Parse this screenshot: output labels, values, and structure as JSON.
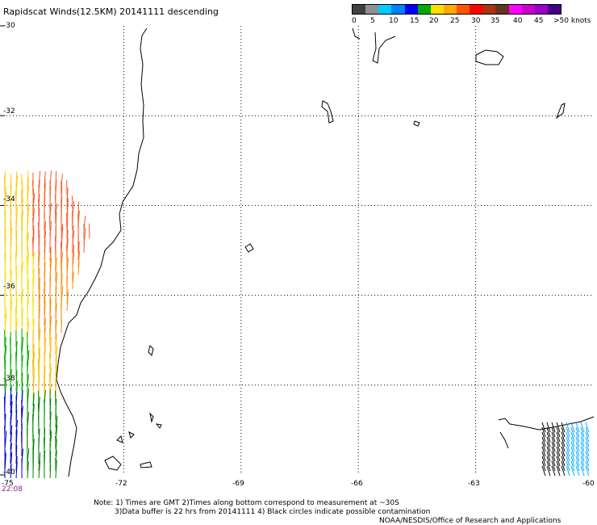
{
  "title": "Rapidscat Winds(12.5KM) 20141111 descending",
  "legend": {
    "colors": [
      "#404040",
      "#909090",
      "#00ccff",
      "#0080ff",
      "#0000ff",
      "#00aa00",
      "#ffdd00",
      "#ffaa00",
      "#ff5500",
      "#ff0000",
      "#aa3311",
      "#663322",
      "#ff00ff",
      "#cc00cc",
      "#9900cc",
      "#440088"
    ],
    "labels": [
      "0",
      "5",
      "10",
      "15",
      "20",
      "25",
      "30",
      "35",
      "40",
      "45",
      ">50 knots"
    ]
  },
  "axes": {
    "lat_labels": [
      "-30",
      "-32",
      "-34",
      "-36",
      "-38",
      "-40"
    ],
    "lon_labels": [
      "-75",
      "-72",
      "-69",
      "-66",
      "-63",
      "-60"
    ],
    "lat_range": [
      -40,
      -30
    ],
    "lon_range": [
      -75,
      -60
    ]
  },
  "time_label": "22:08",
  "notes": {
    "line1": "Note: 1) Times are GMT 2)Times along bottom correspond to measurement at ~30S",
    "line2": "3)Data buffer is 22 hrs from 20141111 4) Black circles indicate possible contamination",
    "line3": "NOAA/NESDIS/Office of Research and Applications"
  }
}
